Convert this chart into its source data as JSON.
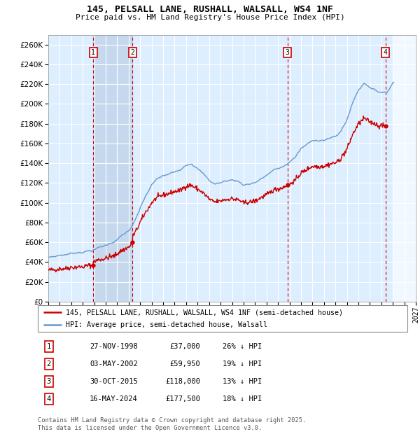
{
  "title": "145, PELSALL LANE, RUSHALL, WALSALL, WS4 1NF",
  "subtitle": "Price paid vs. HM Land Registry's House Price Index (HPI)",
  "xlim": [
    1995,
    2027
  ],
  "ylim": [
    0,
    270000
  ],
  "yticks": [
    0,
    20000,
    40000,
    60000,
    80000,
    100000,
    120000,
    140000,
    160000,
    180000,
    200000,
    220000,
    240000,
    260000
  ],
  "xticks": [
    1995,
    1996,
    1997,
    1998,
    1999,
    2000,
    2001,
    2002,
    2003,
    2004,
    2005,
    2006,
    2007,
    2008,
    2009,
    2010,
    2011,
    2012,
    2013,
    2014,
    2015,
    2016,
    2017,
    2018,
    2019,
    2020,
    2021,
    2022,
    2023,
    2024,
    2025,
    2026,
    2027
  ],
  "transaction_dates": [
    1998.91,
    2002.34,
    2015.83,
    2024.37
  ],
  "transaction_prices": [
    37000,
    59950,
    118000,
    177500
  ],
  "transaction_labels": [
    "1",
    "2",
    "3",
    "4"
  ],
  "sale_info": [
    {
      "label": "1",
      "date": "27-NOV-1998",
      "price": "£37,000",
      "hpi": "26% ↓ HPI"
    },
    {
      "label": "2",
      "date": "03-MAY-2002",
      "price": "£59,950",
      "hpi": "19% ↓ HPI"
    },
    {
      "label": "3",
      "date": "30-OCT-2015",
      "price": "£118,000",
      "hpi": "13% ↓ HPI"
    },
    {
      "label": "4",
      "date": "16-MAY-2024",
      "price": "£177,500",
      "hpi": "18% ↓ HPI"
    }
  ],
  "legend_property": "145, PELSALL LANE, RUSHALL, WALSALL, WS4 1NF (semi-detached house)",
  "legend_hpi": "HPI: Average price, semi-detached house, Walsall",
  "footer": "Contains HM Land Registry data © Crown copyright and database right 2025.\nThis data is licensed under the Open Government Licence v3.0.",
  "property_color": "#cc0000",
  "hpi_color": "#6699cc",
  "bg_color": "#ddeeff",
  "shade_between_color": "#c5d8ee",
  "hatch_bg_color": "#d0d8e8"
}
